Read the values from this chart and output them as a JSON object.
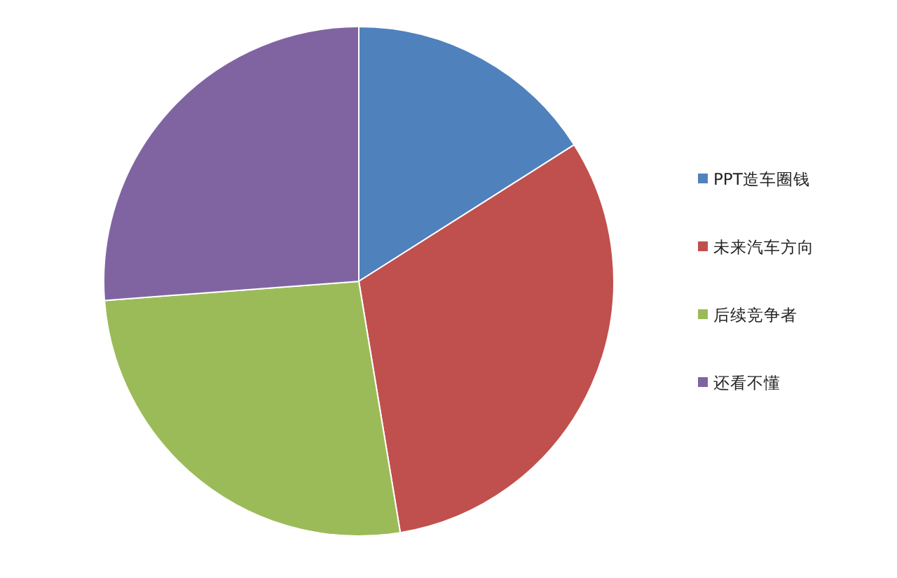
{
  "chart_data": {
    "type": "pie",
    "categories": [
      "PPT造车圈钱",
      "未来汽车方向",
      "后续竞争者",
      "还看不懂"
    ],
    "values": [
      16,
      31.4,
      26.4,
      26.2
    ],
    "colors": [
      "#4f81bd",
      "#c0504d",
      "#9bbb59",
      "#8064a2"
    ],
    "legend": "right"
  }
}
